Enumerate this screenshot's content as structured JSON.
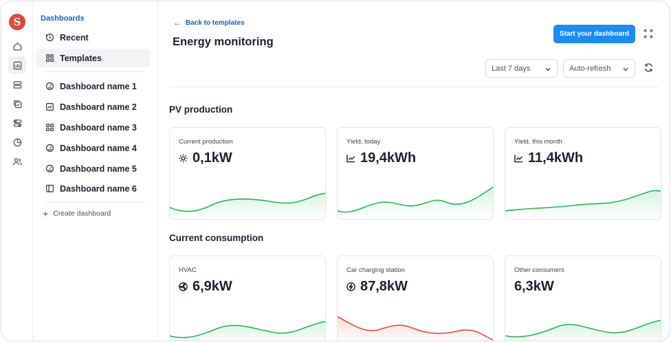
{
  "app": {
    "logo_letter": "S"
  },
  "sidebar": {
    "heading": "Dashboards",
    "top_items": [
      {
        "label": "Recent",
        "icon": "clock-icon"
      },
      {
        "label": "Templates",
        "icon": "grid-icon"
      }
    ],
    "dashboards": [
      {
        "label": "Dashboard name 1",
        "icon": "gauge-icon"
      },
      {
        "label": "Dashboard name 2",
        "icon": "chart-box-icon"
      },
      {
        "label": "Dashboard name 3",
        "icon": "grid-icon"
      },
      {
        "label": "Dashboard name 4",
        "icon": "gauge-icon"
      },
      {
        "label": "Dashboard name 5",
        "icon": "gauge-icon"
      },
      {
        "label": "Dashboard name 6",
        "icon": "panel-icon"
      }
    ],
    "create_label": "Create dashboard"
  },
  "header": {
    "back_label": "Back to templates",
    "title": "Energy monitoring",
    "primary_button": "Start your dashboard",
    "range_select": "Last 7 days",
    "refresh_select": "Auto-refresh"
  },
  "sections": [
    {
      "title": "PV production",
      "cards": [
        {
          "label": "Current production",
          "value": "0,1kW",
          "icon": "sun-icon",
          "trend_color": "#2bb35a"
        },
        {
          "label": "Yield, today",
          "value": "19,4kWh",
          "icon": "trend-icon",
          "trend_color": "#2bb35a"
        },
        {
          "label": "Yield, this month",
          "value": "11,4kWh",
          "icon": "trend-icon",
          "trend_color": "#2bb35a"
        }
      ]
    },
    {
      "title": "Current consumption",
      "cards": [
        {
          "label": "HVAC",
          "value": "6,9kW",
          "icon": "fan-icon",
          "trend_color": "#2bb35a"
        },
        {
          "label": "Car charging station",
          "value": "87,8kW",
          "icon": "bolt-icon",
          "trend_color": "#e5473b"
        },
        {
          "label": "Other consumers",
          "value": "6,3kW",
          "icon": "",
          "trend_color": "#2bb35a"
        }
      ]
    }
  ],
  "colors": {
    "accent": "#1a8cf5",
    "link": "#1a5bd6",
    "positive": "#2bb35a",
    "negative": "#e5473b"
  }
}
